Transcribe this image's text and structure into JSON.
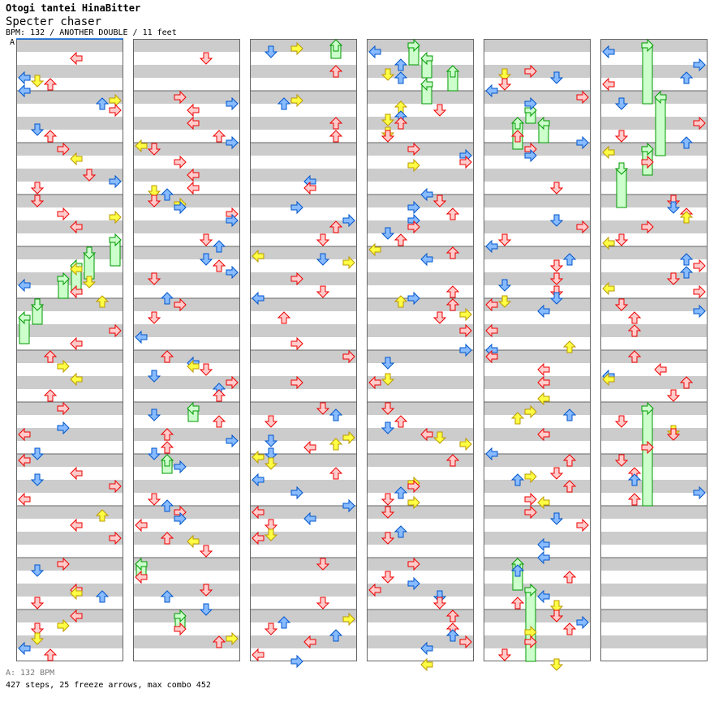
{
  "song_title": "Otogi tantei HinaBitter",
  "song_subtitle": "Specter chaser",
  "info_line": "BPM: 132 / ANOTHER DOUBLE / 11 feet",
  "bpm_marker": "A",
  "footer_bpm": "A: 132 BPM",
  "footer_stats": "427 steps, 25 freeze arrows, max combo 452",
  "chart": {
    "columns": 6,
    "measures_per_column": 12,
    "lanes": [
      "left",
      "down",
      "up",
      "right",
      "left",
      "down",
      "up",
      "right"
    ],
    "seed": 132,
    "colors": {
      "quarter_fill": "#ffcccc",
      "quarter_stroke": "#ee0000",
      "eighth_fill": "#88bbff",
      "eighth_stroke": "#0055cc",
      "sixteenth_fill": "#ffff44",
      "sixteenth_stroke": "#bb9900",
      "freeze_fill": "#ccffcc",
      "freeze_stroke": "#009900",
      "band": "#cccccc",
      "border": "#666666",
      "bpm_line": "#0066dd"
    },
    "freezes": [
      {
        "column": 0,
        "lane": 0,
        "start_row": 84,
        "end_row": 92
      },
      {
        "column": 0,
        "lane": 1,
        "start_row": 80,
        "end_row": 86
      },
      {
        "column": 0,
        "lane": 3,
        "start_row": 72,
        "end_row": 78
      },
      {
        "column": 0,
        "lane": 4,
        "start_row": 68,
        "end_row": 76
      },
      {
        "column": 0,
        "lane": 5,
        "start_row": 64,
        "end_row": 72
      },
      {
        "column": 0,
        "lane": 7,
        "start_row": 60,
        "end_row": 68
      },
      {
        "column": 1,
        "lane": 4,
        "start_row": 112,
        "end_row": 116
      },
      {
        "column": 1,
        "lane": 2,
        "start_row": 128,
        "end_row": 132
      },
      {
        "column": 1,
        "lane": 0,
        "start_row": 160,
        "end_row": 164
      },
      {
        "column": 1,
        "lane": 3,
        "start_row": 176,
        "end_row": 180
      },
      {
        "column": 2,
        "lane": 6,
        "start_row": 0,
        "end_row": 4
      },
      {
        "column": 3,
        "lane": 3,
        "start_row": 0,
        "end_row": 6
      },
      {
        "column": 3,
        "lane": 4,
        "start_row": 4,
        "end_row": 10
      },
      {
        "column": 3,
        "lane": 6,
        "start_row": 8,
        "end_row": 14
      },
      {
        "column": 3,
        "lane": 4,
        "start_row": 12,
        "end_row": 18
      },
      {
        "column": 4,
        "lane": 3,
        "start_row": 20,
        "end_row": 24
      },
      {
        "column": 4,
        "lane": 2,
        "start_row": 24,
        "end_row": 32
      },
      {
        "column": 4,
        "lane": 4,
        "start_row": 24,
        "end_row": 30
      },
      {
        "column": 4,
        "lane": 2,
        "start_row": 160,
        "end_row": 168
      },
      {
        "column": 4,
        "lane": 3,
        "start_row": 168,
        "end_row": 190
      },
      {
        "column": 5,
        "lane": 3,
        "start_row": 0,
        "end_row": 18
      },
      {
        "column": 5,
        "lane": 4,
        "start_row": 16,
        "end_row": 34
      },
      {
        "column": 5,
        "lane": 3,
        "start_row": 32,
        "end_row": 40
      },
      {
        "column": 5,
        "lane": 1,
        "start_row": 38,
        "end_row": 50
      },
      {
        "column": 5,
        "lane": 3,
        "start_row": 112,
        "end_row": 142
      }
    ]
  }
}
